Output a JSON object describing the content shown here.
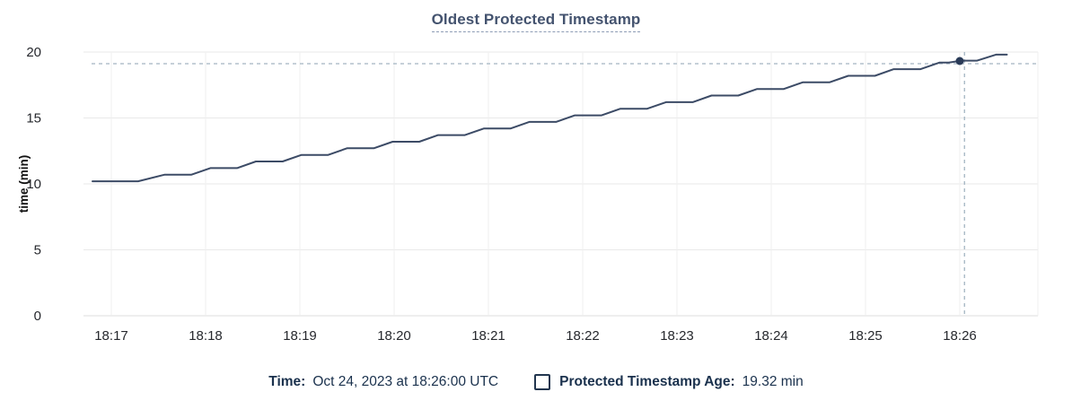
{
  "title": {
    "text": "Oldest Protected Timestamp"
  },
  "colors": {
    "title": "#44536f",
    "title_underline": "#8d9cb5",
    "navy_text": "#1a314d",
    "line": "#3c4b66",
    "dot": "#2a3b58",
    "crosshair": "#a3b5c2",
    "grid_h": "#e9e9e9",
    "grid_v": "#efefef",
    "axis_zero": "#dcdcdc",
    "tick_text": "#26282d",
    "ylabel_text": "#111111"
  },
  "chart_data": {
    "type": "line",
    "title": "Oldest Protected Timestamp",
    "xlabel": "",
    "ylabel": "time (min)",
    "ylim": [
      0,
      20
    ],
    "yticks": [
      0,
      5,
      10,
      15,
      20
    ],
    "grid": true,
    "legend_position": "bottom",
    "xticks": [
      {
        "t": 0,
        "label": "18:17"
      },
      {
        "t": 60,
        "label": "18:18"
      },
      {
        "t": 120,
        "label": "18:19"
      },
      {
        "t": 180,
        "label": "18:20"
      },
      {
        "t": 240,
        "label": "18:21"
      },
      {
        "t": 300,
        "label": "18:22"
      },
      {
        "t": 360,
        "label": "18:23"
      },
      {
        "t": 420,
        "label": "18:24"
      },
      {
        "t": 480,
        "label": "18:25"
      },
      {
        "t": 540,
        "label": "18:26"
      }
    ],
    "series": [
      {
        "name": "Protected Timestamp Age",
        "unit": "min",
        "points": [
          [
            -12,
            10.2
          ],
          [
            17,
            10.2
          ],
          [
            34,
            10.7
          ],
          [
            51,
            10.7
          ],
          [
            63,
            11.2
          ],
          [
            80,
            11.2
          ],
          [
            92,
            11.7
          ],
          [
            109,
            11.7
          ],
          [
            121,
            12.2
          ],
          [
            138,
            12.2
          ],
          [
            150,
            12.7
          ],
          [
            167,
            12.7
          ],
          [
            179,
            13.2
          ],
          [
            196,
            13.2
          ],
          [
            208,
            13.7
          ],
          [
            225,
            13.7
          ],
          [
            237,
            14.2
          ],
          [
            254,
            14.2
          ],
          [
            266,
            14.7
          ],
          [
            283,
            14.7
          ],
          [
            295,
            15.2
          ],
          [
            312,
            15.2
          ],
          [
            324,
            15.7
          ],
          [
            341,
            15.7
          ],
          [
            353,
            16.2
          ],
          [
            370,
            16.2
          ],
          [
            382,
            16.7
          ],
          [
            399,
            16.7
          ],
          [
            411,
            17.2
          ],
          [
            428,
            17.2
          ],
          [
            440,
            17.7
          ],
          [
            457,
            17.7
          ],
          [
            469,
            18.2
          ],
          [
            486,
            18.2
          ],
          [
            498,
            18.7
          ],
          [
            515,
            18.7
          ],
          [
            527,
            19.2
          ],
          [
            533,
            19.2
          ],
          [
            541,
            19.35
          ],
          [
            551,
            19.35
          ],
          [
            563,
            19.8
          ],
          [
            570,
            19.8
          ]
        ]
      }
    ],
    "hover": {
      "dot_t": 540,
      "crosshair_t": 543,
      "value": 19.32,
      "time_label": "18:26"
    }
  },
  "tooltip_bar": {
    "time_label": "Time:",
    "time_value": "Oct 24, 2023 at 18:26:00 UTC",
    "series_label": "Protected Timestamp Age:",
    "series_value": "19.32 min"
  }
}
